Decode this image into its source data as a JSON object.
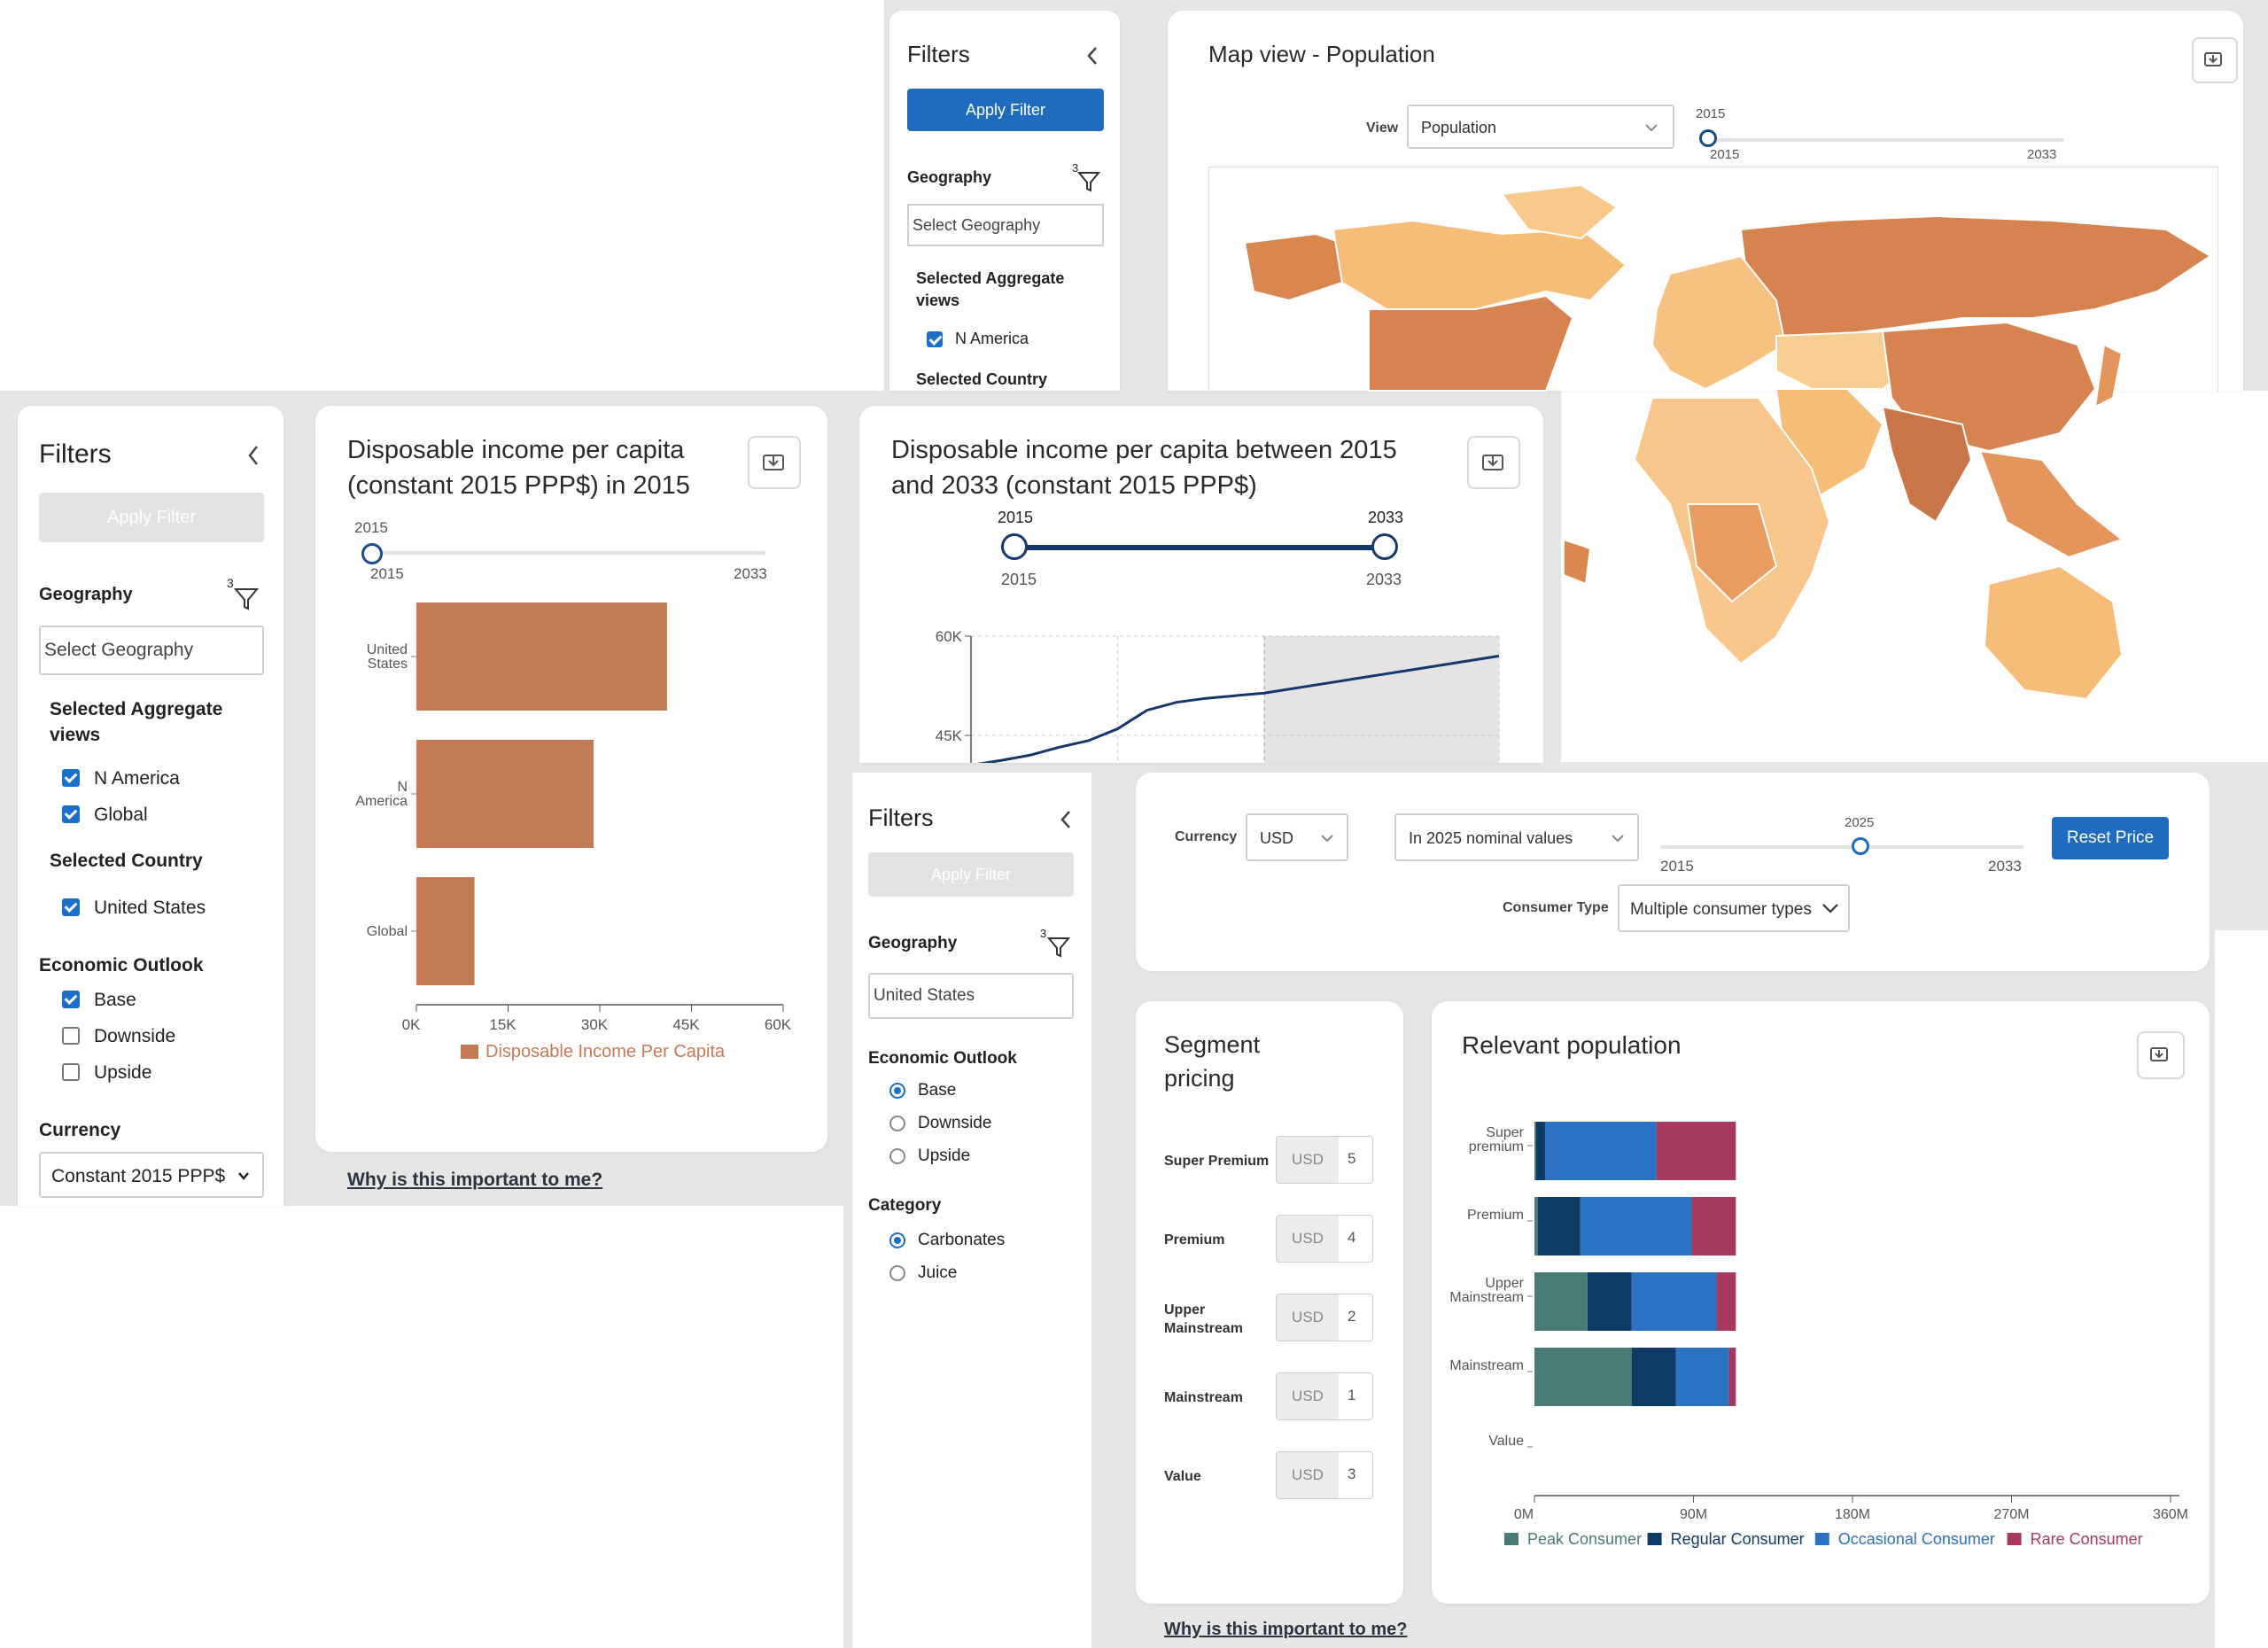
{
  "filters_top": {
    "title": "Filters",
    "apply": "Apply Filter",
    "geography_label": "Geography",
    "filter_count": "3",
    "geo_placeholder": "Select Geography",
    "agg_label": "Selected Aggregate views",
    "agg_item": "N America",
    "country_label": "Selected Country"
  },
  "map_card": {
    "title": "Map view - Population",
    "view_label": "View",
    "view_value": "Population",
    "slider_value": "2015",
    "slider_min": "2015",
    "slider_max": "2033"
  },
  "filters_left": {
    "title": "Filters",
    "apply": "Apply Filter",
    "geography_label": "Geography",
    "filter_count": "3",
    "geo_placeholder": "Select Geography",
    "agg_label": "Selected Aggregate views",
    "agg_items": [
      "N America",
      "Global"
    ],
    "country_label": "Selected Country",
    "country_items": [
      "United States"
    ],
    "outlook_label": "Economic Outlook",
    "outlook_items": [
      "Base",
      "Downside",
      "Upside"
    ],
    "currency_label": "Currency",
    "currency_value": "Constant 2015 PPP$"
  },
  "income_bar_card": {
    "title_line1": "Disposable income per capita",
    "title_line2": "(constant 2015 PPP$) in 2015",
    "slider_value": "2015",
    "slider_min": "2015",
    "slider_max": "2033",
    "link": "Why is this important to me?"
  },
  "income_line_card": {
    "title_line1": "Disposable income per capita between 2015",
    "title_line2": "and 2033 (constant 2015 PPP$)",
    "range_start": "2015",
    "range_end": "2033",
    "range_min": "2015",
    "range_max": "2033"
  },
  "filters_bottom": {
    "title": "Filters",
    "apply": "Apply Filter",
    "geography_label": "Geography",
    "filter_count": "3",
    "geo_value": "United States",
    "outlook_label": "Economic Outlook",
    "outlook_items": [
      "Base",
      "Downside",
      "Upside"
    ],
    "category_label": "Category",
    "category_items": [
      "Carbonates",
      "Juice"
    ]
  },
  "price_bar": {
    "currency_label": "Currency",
    "currency_value": "USD",
    "values_mode": "In 2025 nominal values",
    "slider_value": "2025",
    "slider_min": "2015",
    "slider_max": "2033",
    "reset": "Reset Price",
    "consumer_type_label": "Consumer Type",
    "consumer_type_value": "Multiple consumer types"
  },
  "segment_card": {
    "title_line1": "Segment",
    "title_line2": "pricing",
    "rows": [
      {
        "label": "Super Premium",
        "currency": "USD",
        "value": "5"
      },
      {
        "label": "Premium",
        "currency": "USD",
        "value": "4"
      },
      {
        "label": "Upper Mainstream",
        "currency": "USD",
        "value": "2"
      },
      {
        "label": "Mainstream",
        "currency": "USD",
        "value": "1"
      },
      {
        "label": "Value",
        "currency": "USD",
        "value": "3"
      }
    ],
    "link": "Why is this important to me?"
  },
  "population_card": {
    "title": "Relevant population"
  },
  "colors": {
    "accent_blue": "#1f6bbf",
    "bar_brown": "#c47a55",
    "peak": "#4a7a76",
    "regular": "#0f3a66",
    "occasional": "#2b72c2",
    "rare": "#a63a5e"
  },
  "chart_data": [
    {
      "type": "bar",
      "orientation": "horizontal",
      "categories": [
        "United States",
        "N America",
        "Global"
      ],
      "series": [
        {
          "name": "Disposable Income Per Capita",
          "values": [
            41000,
            29000,
            9500
          ]
        }
      ],
      "xticks": [
        "0K",
        "15K",
        "30K",
        "45K",
        "60K"
      ],
      "xlim": [
        0,
        60000
      ]
    },
    {
      "type": "line",
      "x": [
        2015,
        2016,
        2017,
        2018,
        2019,
        2020,
        2021,
        2022,
        2023,
        2024,
        2025,
        2026,
        2027,
        2028,
        2029,
        2030,
        2031,
        2032,
        2033
      ],
      "y": [
        40500,
        41200,
        42000,
        43200,
        44200,
        46000,
        48800,
        50000,
        50600,
        51000,
        51400,
        52100,
        52800,
        53500,
        54200,
        54900,
        55600,
        56300,
        57000
      ],
      "yticks": [
        "45K",
        "60K"
      ],
      "shaded_from": 2025
    },
    {
      "type": "bar",
      "orientation": "horizontal",
      "stacked": true,
      "categories": [
        "Super premium",
        "Premium",
        "Upper Mainstream",
        "Mainstream",
        "Value"
      ],
      "series": [
        {
          "name": "Peak Consumer",
          "values": [
            1,
            2,
            30,
            55,
            0
          ]
        },
        {
          "name": "Regular Consumer",
          "values": [
            5,
            24,
            25,
            25,
            0
          ]
        },
        {
          "name": "Occasional Consumer",
          "values": [
            63,
            63,
            48,
            30,
            0
          ]
        },
        {
          "name": "Rare Consumer",
          "values": [
            45,
            25,
            11,
            4,
            0
          ]
        }
      ],
      "xticks": [
        "0M",
        "90M",
        "180M",
        "270M",
        "360M"
      ],
      "xlim": [
        0,
        360
      ]
    }
  ]
}
